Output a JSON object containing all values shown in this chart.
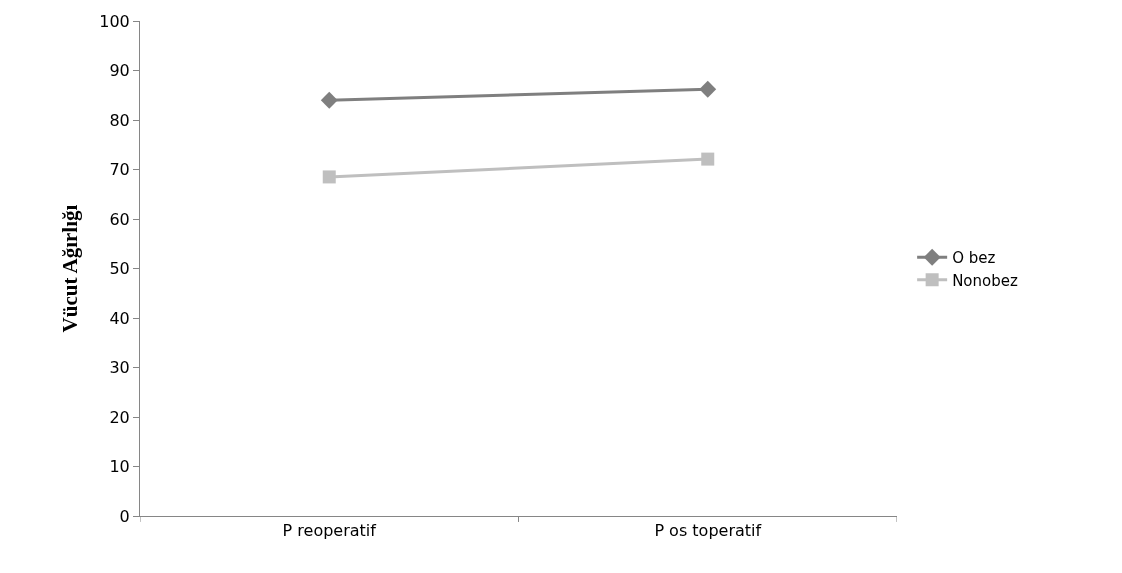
{
  "chart_data": {
    "type": "line",
    "ylabel": "Vücut Ağırlığı",
    "categories": [
      "P reoperatif",
      "P os toperatif"
    ],
    "series": [
      {
        "name": "O bez",
        "color": "#7f7f7f",
        "marker": "diamond",
        "values": [
          84.0,
          86.2
        ]
      },
      {
        "name": "Nonobez",
        "color": "#bfbfbf",
        "marker": "square",
        "values": [
          68.5,
          72.1
        ]
      }
    ],
    "ylim": [
      0,
      100
    ],
    "yticks": [
      0,
      10,
      20,
      30,
      40,
      50,
      60,
      70,
      80,
      90,
      100
    ],
    "legend": "right"
  }
}
